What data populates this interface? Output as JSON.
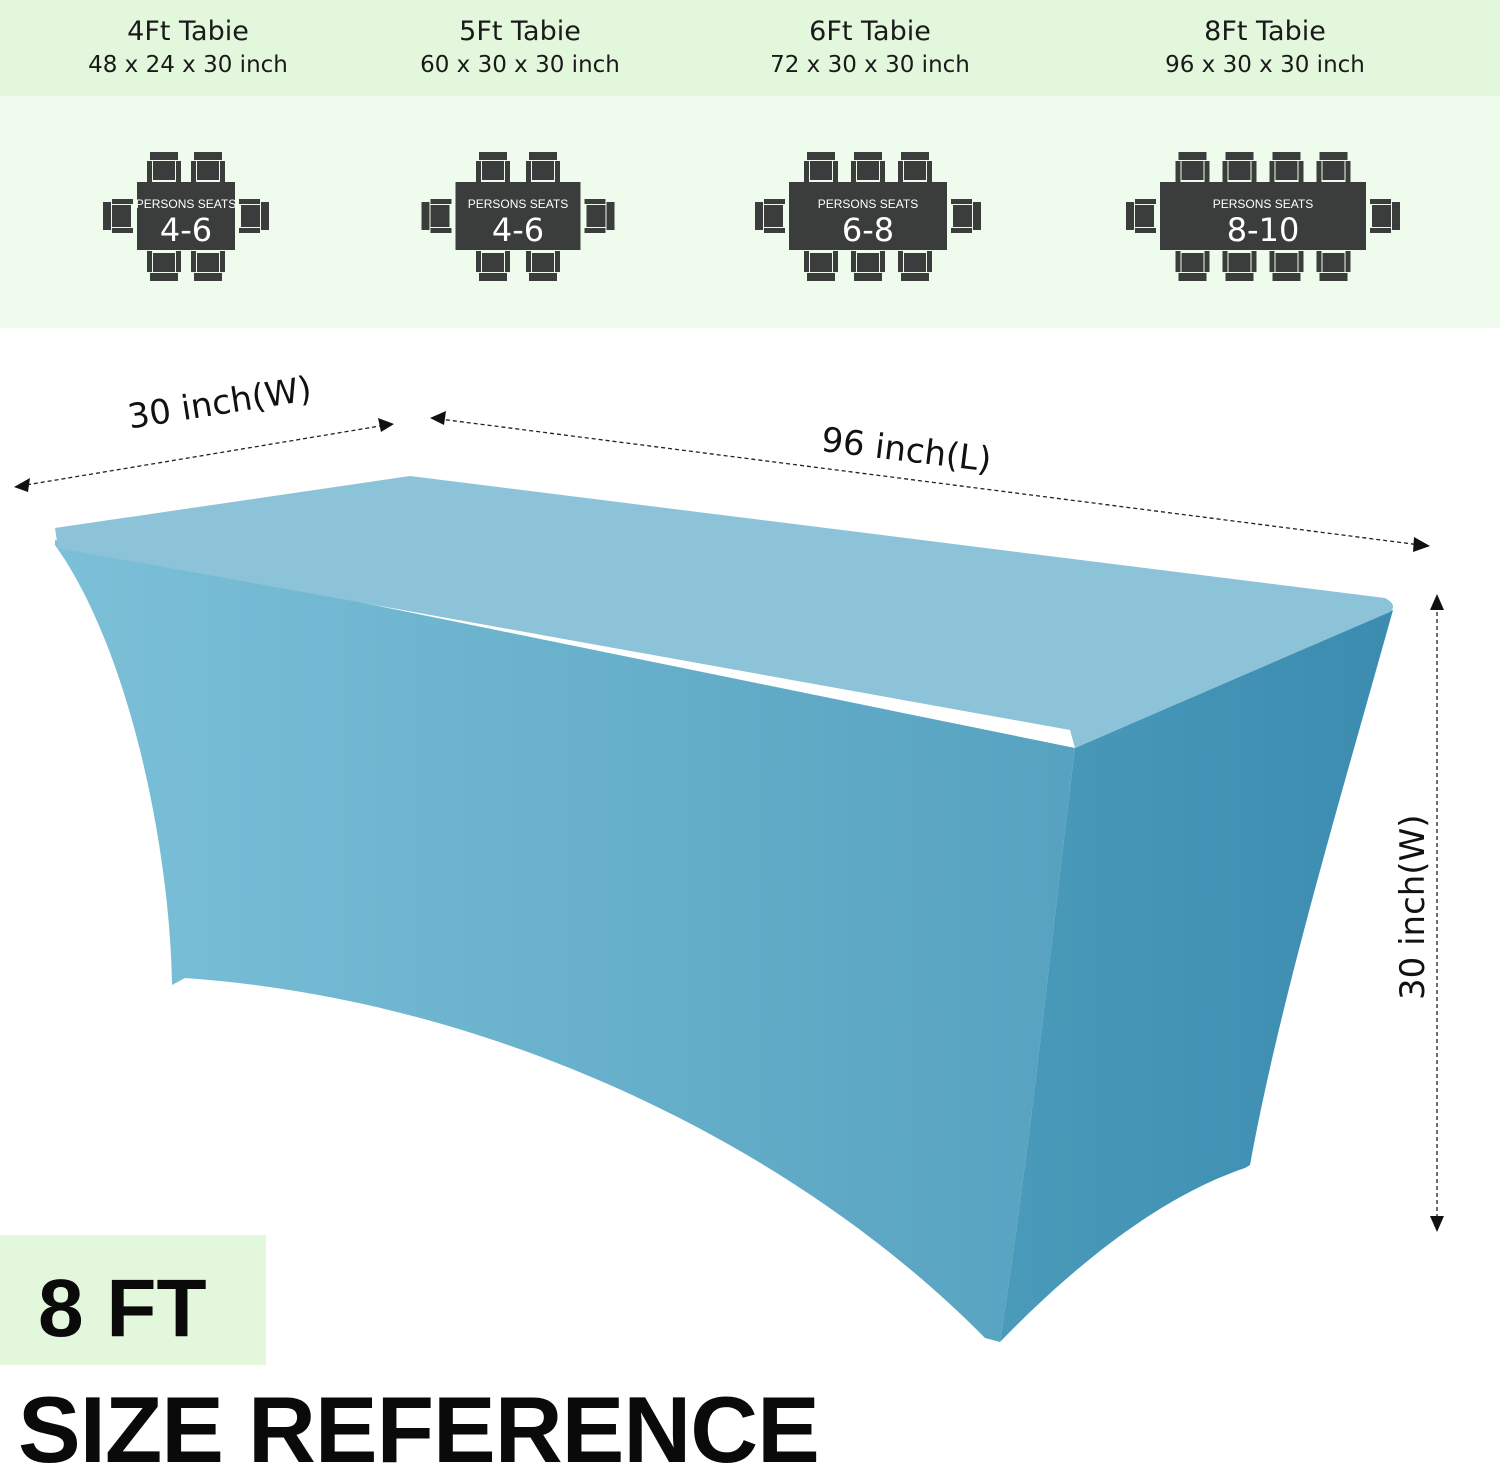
{
  "sizes": [
    {
      "title": "4Ft  Tabie",
      "dims": "48 x 24 x 30 inch",
      "seats_label": "PERSONS SEATS",
      "seats": "4-6",
      "chairs_per_side": 2
    },
    {
      "title": "5Ft  Tabie",
      "dims": "60 x 30 x 30 inch",
      "seats_label": "PERSONS SEATS",
      "seats": "4-6",
      "chairs_per_side": 2
    },
    {
      "title": "6Ft  Tabie",
      "dims": "72 x 30 x 30 inch",
      "seats_label": "PERSONS SEATS",
      "seats": "6-8",
      "chairs_per_side": 3
    },
    {
      "title": "8Ft  Tabie",
      "dims": "96 x 30 x 30 inch",
      "seats_label": "PERSONS SEATS",
      "seats": "8-10",
      "chairs_per_side": 4
    }
  ],
  "dimensions": {
    "width": "30 inch(W)",
    "length": "96 inch(L)",
    "height": "30 inch(W)"
  },
  "badge": "8 FT",
  "heading": "SIZE REFERENCE",
  "colors": {
    "cloth": "#6ab2cc",
    "icon": "#3a3d3b",
    "header_band": "#e2f7dc"
  }
}
